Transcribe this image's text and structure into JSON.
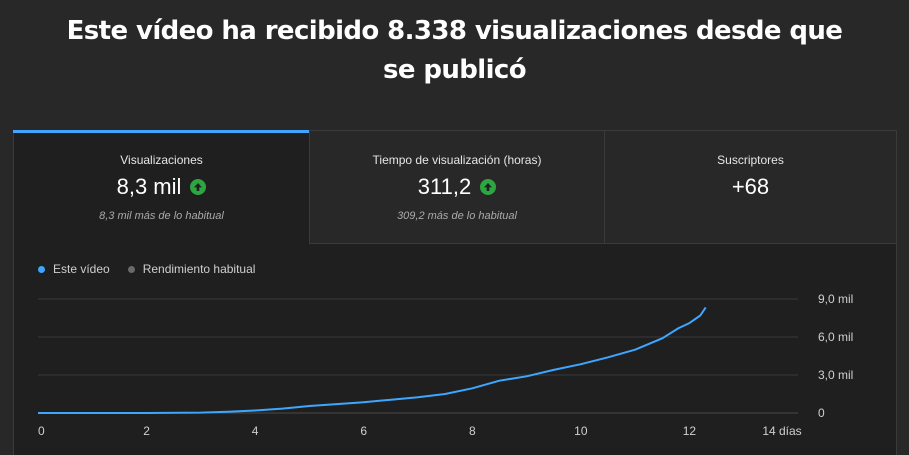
{
  "headline": "Este vídeo ha recibido 8.338 visualizaciones desde que se publicó",
  "colors": {
    "accent": "#3ea6ff",
    "up": "#2ba640",
    "series_this": "#3ea6ff",
    "series_typical": "#6a6a6a"
  },
  "tabs": [
    {
      "label": "Visualizaciones",
      "value": "8,3 mil",
      "trend_icon": "arrow-up-circle-icon",
      "sub": "8,3 mil más de lo habitual",
      "active": true
    },
    {
      "label": "Tiempo de visualización (horas)",
      "value": "311,2",
      "trend_icon": "arrow-up-circle-icon",
      "sub": "309,2 más de lo habitual",
      "active": false
    },
    {
      "label": "Suscriptores",
      "value": "+68",
      "trend_icon": "",
      "sub": "",
      "active": false
    }
  ],
  "legend": [
    {
      "label": "Este vídeo",
      "color": "#3ea6ff"
    },
    {
      "label": "Rendimiento habitual",
      "color": "#6a6a6a"
    }
  ],
  "chart_data": {
    "type": "line",
    "x_ticks": [
      "0",
      "2",
      "4",
      "6",
      "8",
      "10",
      "12",
      "14 días"
    ],
    "y_ticks": [
      "0",
      "3,0 mil",
      "6,0 mil",
      "9,0 mil"
    ],
    "xlim": [
      0,
      14
    ],
    "ylim": [
      0,
      9000
    ],
    "grid": true,
    "series": [
      {
        "name": "Este vídeo",
        "x": [
          0,
          1,
          2,
          3,
          3.5,
          4,
          4.5,
          5,
          5.5,
          6,
          6.5,
          7,
          7.5,
          8,
          8.5,
          9,
          9.5,
          10,
          10.5,
          11,
          11.5,
          11.8,
          12,
          12.2,
          12.3
        ],
        "y": [
          0,
          0,
          0,
          30,
          100,
          200,
          350,
          550,
          700,
          850,
          1050,
          1250,
          1500,
          1950,
          2550,
          2900,
          3400,
          3850,
          4400,
          5000,
          5900,
          6700,
          7100,
          7700,
          8338
        ]
      }
    ]
  }
}
